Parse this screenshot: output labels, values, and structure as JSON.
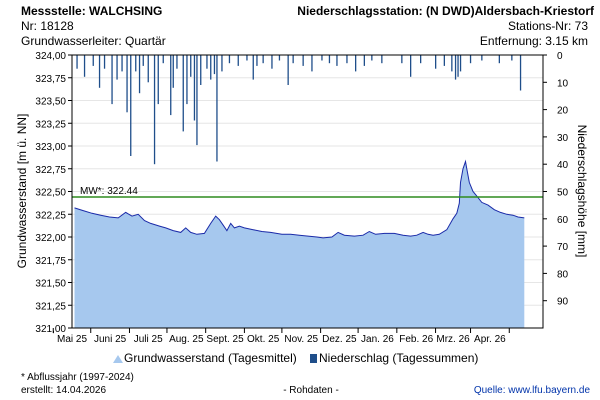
{
  "header": {
    "station_label": "Messstelle: WALCHSING",
    "number_label": "Nr: 18128",
    "aquifer_label": "Grundwasserleiter: Quartär",
    "rain_station_label": "Niederschlagsstation: (N DWD)Aldersbach-Kriestorf",
    "rain_station_number_label": "Stations-Nr: 73",
    "distance_label": "Entfernung: 3.15 km"
  },
  "footer": {
    "footnote": "* Abflussjahr (1997-2024)",
    "created": "erstellt:  14.04.2026",
    "raw_data": "- Rohdaten -",
    "source": "Quelle:  www.lfu.bayern.de"
  },
  "colors": {
    "area_fill": "#a6c8ee",
    "area_line": "#1a2aa8",
    "precip_bar": "#1f4e8a",
    "mean_line": "#2e8b1e",
    "grid": "#e6e6e6"
  },
  "chart_data": {
    "type": "area",
    "ylabel_left": "Grundwasserstand [m ü. NN]",
    "ylabel_right": "Niederschlagshöhe [mm]",
    "yticks_left": [
      "324,00",
      "323,75",
      "323,50",
      "323,25",
      "323,00",
      "322,75",
      "322,50",
      "322,25",
      "322,00",
      "321,75",
      "321,50",
      "321,25",
      "321,00"
    ],
    "yticks_right": [
      "0",
      "10",
      "20",
      "30",
      "40",
      "50",
      "60",
      "70",
      "80",
      "90"
    ],
    "ylim_left": [
      321.0,
      324.0
    ],
    "ylim_right": [
      0,
      100
    ],
    "x_categories": [
      "Mai 25",
      "Juni 25",
      "Juli 25",
      "Aug. 25",
      "Sept. 25",
      "Okt. 25",
      "Nov. 25",
      "Dez. 25",
      "Jan. 26",
      "Feb. 26",
      "Mrz. 26",
      "Apr. 26"
    ],
    "mean_level": {
      "label": "MW*: 322.44",
      "value": 322.44
    },
    "legend": {
      "position": "bottom",
      "items": [
        {
          "name": "Grundwasserstand (Tagesmittel)",
          "color": "#a6c8ee",
          "shape": "triangle"
        },
        {
          "name": "Niederschlag (Tagessummen)",
          "color": "#1f4e8a",
          "shape": "square"
        }
      ]
    },
    "groundwater_series": [
      [
        "2025-04-18",
        322.32
      ],
      [
        "2025-04-25",
        322.29
      ],
      [
        "2025-05-02",
        322.26
      ],
      [
        "2025-05-09",
        322.24
      ],
      [
        "2025-05-16",
        322.22
      ],
      [
        "2025-05-23",
        322.21
      ],
      [
        "2025-05-29",
        322.27
      ],
      [
        "2025-06-03",
        322.23
      ],
      [
        "2025-06-08",
        322.25
      ],
      [
        "2025-06-13",
        322.18
      ],
      [
        "2025-06-18",
        322.15
      ],
      [
        "2025-06-25",
        322.12
      ],
      [
        "2025-06-30",
        322.1
      ],
      [
        "2025-07-06",
        322.07
      ],
      [
        "2025-07-12",
        322.05
      ],
      [
        "2025-07-16",
        322.1
      ],
      [
        "2025-07-20",
        322.05
      ],
      [
        "2025-07-25",
        322.03
      ],
      [
        "2025-07-31",
        322.04
      ],
      [
        "2025-08-05",
        322.15
      ],
      [
        "2025-08-09",
        322.23
      ],
      [
        "2025-08-12",
        322.19
      ],
      [
        "2025-08-15",
        322.13
      ],
      [
        "2025-08-18",
        322.07
      ],
      [
        "2025-08-21",
        322.15
      ],
      [
        "2025-08-24",
        322.1
      ],
      [
        "2025-08-28",
        322.12
      ],
      [
        "2025-09-01",
        322.1
      ],
      [
        "2025-09-08",
        322.08
      ],
      [
        "2025-09-15",
        322.06
      ],
      [
        "2025-09-22",
        322.05
      ],
      [
        "2025-10-01",
        322.03
      ],
      [
        "2025-10-08",
        322.03
      ],
      [
        "2025-10-15",
        322.02
      ],
      [
        "2025-10-22",
        322.01
      ],
      [
        "2025-10-29",
        322.0
      ],
      [
        "2025-11-03",
        321.99
      ],
      [
        "2025-11-10",
        322.0
      ],
      [
        "2025-11-15",
        322.05
      ],
      [
        "2025-11-20",
        322.02
      ],
      [
        "2025-11-28",
        322.01
      ],
      [
        "2025-12-05",
        322.02
      ],
      [
        "2025-12-10",
        322.06
      ],
      [
        "2025-12-15",
        322.03
      ],
      [
        "2025-12-22",
        322.04
      ],
      [
        "2025-12-30",
        322.04
      ],
      [
        "2026-01-06",
        322.02
      ],
      [
        "2026-01-12",
        322.01
      ],
      [
        "2026-01-17",
        322.02
      ],
      [
        "2026-01-22",
        322.05
      ],
      [
        "2026-01-26",
        322.03
      ],
      [
        "2026-01-30",
        322.02
      ],
      [
        "2026-02-04",
        322.03
      ],
      [
        "2026-02-10",
        322.08
      ],
      [
        "2026-02-15",
        322.2
      ],
      [
        "2026-02-18",
        322.26
      ],
      [
        "2026-02-20",
        322.37
      ],
      [
        "2026-02-21",
        322.6
      ],
      [
        "2026-02-23",
        322.75
      ],
      [
        "2026-02-25",
        322.83
      ],
      [
        "2026-02-26",
        322.75
      ],
      [
        "2026-02-28",
        322.6
      ],
      [
        "2026-03-03",
        322.5
      ],
      [
        "2026-03-06",
        322.45
      ],
      [
        "2026-03-10",
        322.38
      ],
      [
        "2026-03-15",
        322.35
      ],
      [
        "2026-03-20",
        322.3
      ],
      [
        "2026-03-25",
        322.27
      ],
      [
        "2026-03-30",
        322.25
      ],
      [
        "2026-04-04",
        322.24
      ],
      [
        "2026-04-08",
        322.22
      ],
      [
        "2026-04-13",
        322.21
      ]
    ],
    "precipitation_series": [
      [
        "2025-04-20",
        5
      ],
      [
        "2025-04-26",
        8
      ],
      [
        "2025-05-03",
        4
      ],
      [
        "2025-05-08",
        12
      ],
      [
        "2025-05-12",
        5
      ],
      [
        "2025-05-18",
        18
      ],
      [
        "2025-05-22",
        9
      ],
      [
        "2025-05-26",
        6
      ],
      [
        "2025-05-30",
        21
      ],
      [
        "2025-06-02",
        37
      ],
      [
        "2025-06-06",
        6
      ],
      [
        "2025-06-09",
        14
      ],
      [
        "2025-06-12",
        4
      ],
      [
        "2025-06-16",
        10
      ],
      [
        "2025-06-21",
        40
      ],
      [
        "2025-06-24",
        18
      ],
      [
        "2025-06-28",
        3
      ],
      [
        "2025-07-04",
        22
      ],
      [
        "2025-07-06",
        12
      ],
      [
        "2025-07-09",
        5
      ],
      [
        "2025-07-14",
        28
      ],
      [
        "2025-07-17",
        18
      ],
      [
        "2025-07-20",
        8
      ],
      [
        "2025-07-23",
        24
      ],
      [
        "2025-07-25",
        33
      ],
      [
        "2025-07-28",
        11
      ],
      [
        "2025-08-02",
        5
      ],
      [
        "2025-08-05",
        9
      ],
      [
        "2025-08-08",
        7
      ],
      [
        "2025-08-10",
        39
      ],
      [
        "2025-08-14",
        6
      ],
      [
        "2025-08-20",
        3
      ],
      [
        "2025-08-27",
        4
      ],
      [
        "2025-09-03",
        2
      ],
      [
        "2025-09-08",
        9
      ],
      [
        "2025-09-11",
        4
      ],
      [
        "2025-09-16",
        3
      ],
      [
        "2025-09-23",
        5
      ],
      [
        "2025-09-29",
        2
      ],
      [
        "2025-10-06",
        11
      ],
      [
        "2025-10-10",
        3
      ],
      [
        "2025-10-18",
        4
      ],
      [
        "2025-10-25",
        6
      ],
      [
        "2025-11-02",
        2
      ],
      [
        "2025-11-08",
        3
      ],
      [
        "2025-11-14",
        4
      ],
      [
        "2025-11-22",
        3
      ],
      [
        "2025-11-29",
        6
      ],
      [
        "2025-12-06",
        4
      ],
      [
        "2025-12-12",
        2
      ],
      [
        "2025-12-20",
        3
      ],
      [
        "2026-01-05",
        3
      ],
      [
        "2026-01-12",
        8
      ],
      [
        "2026-01-20",
        3
      ],
      [
        "2026-02-01",
        5
      ],
      [
        "2026-02-08",
        4
      ],
      [
        "2026-02-14",
        6
      ],
      [
        "2026-02-17",
        9
      ],
      [
        "2026-02-19",
        8
      ],
      [
        "2026-02-21",
        6
      ],
      [
        "2026-03-01",
        3
      ],
      [
        "2026-03-10",
        2
      ],
      [
        "2026-03-24",
        3
      ],
      [
        "2026-04-03",
        2
      ],
      [
        "2026-04-10",
        13
      ]
    ]
  }
}
